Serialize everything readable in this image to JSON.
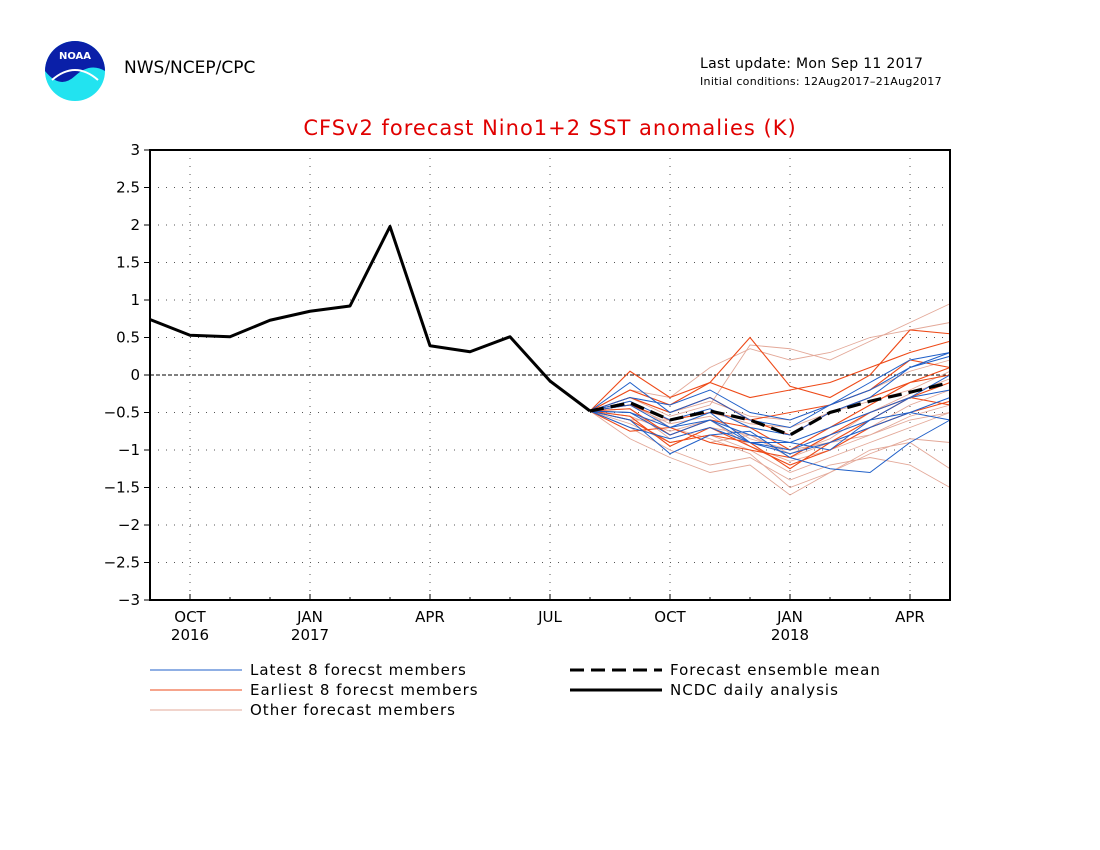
{
  "header": {
    "agency": "NWS/NCEP/CPC",
    "last_update": "Last update: Mon Sep 11 2017",
    "initial_conditions": "Initial conditions: 12Aug2017–21Aug2017",
    "logo_text": "NOAA"
  },
  "chart_data": {
    "type": "line",
    "title": "CFSv2 forecast Nino1+2 SST anomalies (K)",
    "xlabel": "",
    "ylabel": "",
    "ylim": [
      -3,
      3
    ],
    "yticks": [
      3,
      2.5,
      2,
      1.5,
      1,
      0.5,
      0,
      -0.5,
      -1,
      -1.5,
      -2,
      -2.5,
      -3
    ],
    "ytick_labels": [
      "3",
      "2.5",
      "2",
      "1.5",
      "1",
      "0.5",
      "0",
      "−0.5",
      "−1",
      "−1.5",
      "−2",
      "−2.5",
      "−3"
    ],
    "xlim": [
      "2016-09",
      "2018-05"
    ],
    "xticks": [
      {
        "month": "2016-10",
        "label": "OCT",
        "year": "2016"
      },
      {
        "month": "2017-01",
        "label": "JAN",
        "year": "2017"
      },
      {
        "month": "2017-04",
        "label": "APR",
        "year": ""
      },
      {
        "month": "2017-07",
        "label": "JUL",
        "year": ""
      },
      {
        "month": "2017-10",
        "label": "OCT",
        "year": ""
      },
      {
        "month": "2018-01",
        "label": "JAN",
        "year": "2018"
      },
      {
        "month": "2018-04",
        "label": "APR",
        "year": ""
      }
    ],
    "grid": true,
    "zero_line": true,
    "legend_position": "bottom",
    "colors": {
      "latest": "#1f5fc8",
      "earliest": "#ee4a18",
      "other": "#e3a898",
      "observed": "#000000",
      "mean": "#000000",
      "title": "#e00000"
    },
    "observed": {
      "name": "NCDC daily analysis",
      "x": [
        "2016-09",
        "2016-10",
        "2016-11",
        "2016-12",
        "2017-01",
        "2017-02",
        "2017-03",
        "2017-04",
        "2017-05",
        "2017-06",
        "2017-07",
        "2017-08"
      ],
      "values": [
        0.74,
        0.53,
        0.51,
        0.73,
        0.85,
        0.92,
        1.98,
        0.39,
        0.31,
        0.51,
        -0.08,
        -0.48
      ]
    },
    "forecast_x": [
      "2017-08",
      "2017-09",
      "2017-10",
      "2017-11",
      "2017-12",
      "2018-01",
      "2018-02",
      "2018-03",
      "2018-04",
      "2018-05"
    ],
    "ensemble_mean": {
      "name": "Forecast ensemble mean",
      "values": [
        -0.48,
        -0.37,
        -0.6,
        -0.48,
        -0.6,
        -0.8,
        -0.5,
        -0.35,
        -0.23,
        -0.1
      ]
    },
    "series": [
      {
        "group": "latest",
        "name": "Latest 8 forecst members",
        "values": [
          -0.48,
          -0.5,
          -0.7,
          -0.6,
          -0.8,
          -0.9,
          -0.7,
          -0.5,
          -0.3,
          -0.2
        ]
      },
      {
        "group": "latest",
        "values": [
          -0.48,
          -0.6,
          -1.05,
          -0.8,
          -0.75,
          -1.1,
          -1.25,
          -1.3,
          -0.9,
          -0.6
        ]
      },
      {
        "group": "latest",
        "values": [
          -0.48,
          -0.3,
          -0.4,
          -0.2,
          -0.5,
          -0.6,
          -0.4,
          -0.1,
          0.2,
          0.3
        ]
      },
      {
        "group": "latest",
        "values": [
          -0.48,
          -0.4,
          -0.7,
          -0.5,
          -0.9,
          -0.9,
          -1.0,
          -0.6,
          -0.3,
          0.0
        ]
      },
      {
        "group": "latest",
        "values": [
          -0.48,
          -0.1,
          -0.5,
          -0.3,
          -0.6,
          -0.7,
          -0.4,
          -0.2,
          0.1,
          0.25
        ]
      },
      {
        "group": "latest",
        "values": [
          -0.48,
          -0.7,
          -0.85,
          -0.7,
          -0.9,
          -1.05,
          -0.9,
          -0.7,
          -0.5,
          -0.3
        ]
      },
      {
        "group": "latest",
        "values": [
          -0.48,
          -0.35,
          -0.6,
          -0.45,
          -0.7,
          -0.8,
          -0.5,
          -0.3,
          0.1,
          0.3
        ]
      },
      {
        "group": "latest",
        "values": [
          -0.48,
          -0.5,
          -0.8,
          -0.6,
          -0.9,
          -1.0,
          -0.8,
          -0.6,
          -0.5,
          -0.6
        ]
      },
      {
        "group": "earliest",
        "name": "Earliest 8 forecst members",
        "values": [
          -0.48,
          0.05,
          -0.3,
          -0.1,
          0.5,
          -0.15,
          -0.3,
          0.0,
          0.6,
          0.55
        ]
      },
      {
        "group": "earliest",
        "values": [
          -0.48,
          -0.6,
          -0.9,
          -0.8,
          -0.9,
          -1.25,
          -0.9,
          -0.6,
          -0.3,
          -0.1
        ]
      },
      {
        "group": "earliest",
        "values": [
          -0.48,
          -0.3,
          -0.5,
          -0.3,
          -0.6,
          -0.5,
          -0.4,
          -0.2,
          0.2,
          0.1
        ]
      },
      {
        "group": "earliest",
        "values": [
          -0.48,
          -0.75,
          -0.7,
          -0.9,
          -1.0,
          -1.1,
          -0.8,
          -0.5,
          -0.3,
          -0.4
        ]
      },
      {
        "group": "earliest",
        "values": [
          -0.48,
          -0.45,
          -0.8,
          -0.6,
          -0.7,
          -1.0,
          -0.7,
          -0.4,
          -0.1,
          0.1
        ]
      },
      {
        "group": "earliest",
        "values": [
          -0.48,
          -0.55,
          -0.95,
          -0.7,
          -0.95,
          -1.2,
          -1.0,
          -0.7,
          -0.5,
          -0.35
        ]
      },
      {
        "group": "earliest",
        "values": [
          -0.48,
          -0.2,
          -0.4,
          -0.1,
          -0.3,
          -0.2,
          -0.1,
          0.1,
          0.3,
          0.45
        ]
      },
      {
        "group": "earliest",
        "values": [
          -0.48,
          -0.4,
          -0.6,
          -0.5,
          -0.6,
          -0.8,
          -0.5,
          -0.3,
          -0.1,
          0.0
        ]
      },
      {
        "group": "other",
        "name": "Other forecast members",
        "values": [
          -0.48,
          -0.3,
          -0.55,
          -0.4,
          0.4,
          0.35,
          0.2,
          0.45,
          0.7,
          0.95
        ]
      },
      {
        "group": "other",
        "values": [
          -0.48,
          -0.7,
          -1.0,
          -1.2,
          -1.1,
          -1.4,
          -1.2,
          -1.1,
          -1.2,
          -1.5
        ]
      },
      {
        "group": "other",
        "values": [
          -0.48,
          -0.2,
          -0.3,
          0.1,
          0.35,
          0.2,
          0.3,
          0.5,
          0.6,
          0.7
        ]
      },
      {
        "group": "other",
        "values": [
          -0.48,
          -0.85,
          -1.1,
          -1.3,
          -1.2,
          -1.6,
          -1.3,
          -1.0,
          -0.9,
          -1.25
        ]
      },
      {
        "group": "other",
        "values": [
          -0.48,
          -0.5,
          -0.7,
          -0.9,
          -0.8,
          -1.1,
          -0.9,
          -0.8,
          -0.6,
          -0.5
        ]
      },
      {
        "group": "other",
        "values": [
          -0.48,
          -0.4,
          -0.65,
          -0.55,
          -0.85,
          -1.0,
          -0.9,
          -0.7,
          -0.4,
          -0.2
        ]
      },
      {
        "group": "other",
        "values": [
          -0.48,
          -0.65,
          -0.9,
          -0.8,
          -1.0,
          -1.3,
          -1.1,
          -0.9,
          -0.7,
          -0.5
        ]
      },
      {
        "group": "other",
        "values": [
          -0.48,
          -0.3,
          -0.5,
          -0.35,
          -0.55,
          -0.6,
          -0.4,
          -0.2,
          0.05,
          0.2
        ]
      },
      {
        "group": "other",
        "values": [
          -0.48,
          -0.55,
          -0.75,
          -0.6,
          -0.95,
          -1.15,
          -1.0,
          -0.8,
          -0.55,
          -0.4
        ]
      },
      {
        "group": "other",
        "values": [
          -0.48,
          -0.45,
          -0.85,
          -0.7,
          -0.8,
          -1.05,
          -0.85,
          -0.5,
          -0.25,
          -0.05
        ]
      },
      {
        "group": "other",
        "values": [
          -0.48,
          -0.6,
          -0.6,
          -0.5,
          -0.65,
          -0.7,
          -0.5,
          -0.35,
          -0.2,
          0.05
        ]
      },
      {
        "group": "other",
        "values": [
          -0.48,
          -0.35,
          -0.7,
          -0.85,
          -1.05,
          -1.5,
          -1.3,
          -1.05,
          -0.85,
          -0.9
        ]
      }
    ],
    "legend": [
      {
        "group": "latest",
        "label": "Latest 8 forecst members"
      },
      {
        "group": "earliest",
        "label": "Earliest 8 forecst members"
      },
      {
        "group": "other",
        "label": "Other forecast members"
      },
      {
        "group": "mean",
        "label": "Forecast ensemble mean"
      },
      {
        "group": "observed",
        "label": "NCDC daily analysis"
      }
    ]
  }
}
